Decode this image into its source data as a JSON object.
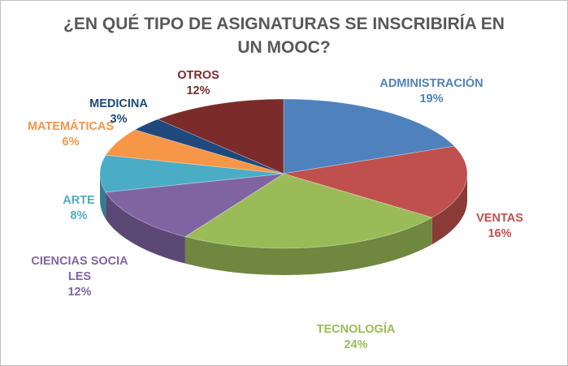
{
  "chart_data": {
    "type": "pie3d",
    "title": "¿EN QUÉ TIPO DE ASIGNATURAS SE INSCRIBIRÍA EN UN MOOC?",
    "categories": [
      "ADMINISTRACIÓN",
      "VENTAS",
      "TECNOLOGÍA",
      "CIENCIAS SOCIALES",
      "ARTE",
      "MATEMÁTICAS",
      "MEDICINA",
      "OTROS"
    ],
    "values": [
      19,
      16,
      24,
      12,
      8,
      6,
      3,
      12
    ],
    "value_labels": [
      "19%",
      "16%",
      "24%",
      "12%",
      "8%",
      "6%",
      "3%",
      "12%"
    ],
    "colors": [
      "#4f81bd",
      "#c0504d",
      "#9bbb59",
      "#8064a2",
      "#4bacc6",
      "#f79646",
      "#1f497d",
      "#7b2c2a"
    ]
  }
}
